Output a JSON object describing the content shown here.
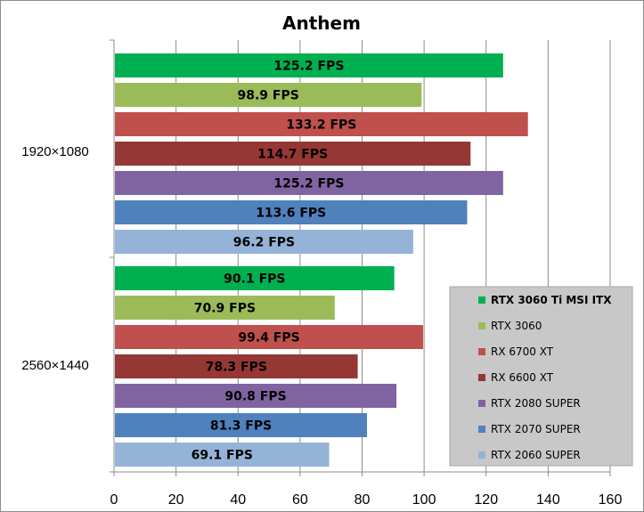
{
  "chart_data": {
    "type": "bar",
    "orientation": "horizontal",
    "title": "Anthem",
    "categories": [
      "1920×1080",
      "2560×1440"
    ],
    "series": [
      {
        "name": "RTX 3060 Ti MSI ITX",
        "color": "#00b050",
        "values": [
          125.2,
          90.1
        ],
        "labels": [
          "125.2 FPS",
          "90.1 FPS"
        ]
      },
      {
        "name": "RTX 3060",
        "color": "#9bbb59",
        "values": [
          98.9,
          70.9
        ],
        "labels": [
          "98.9 FPS",
          "70.9 FPS"
        ]
      },
      {
        "name": "RX 6700 XT",
        "color": "#c0504d",
        "values": [
          133.2,
          99.4
        ],
        "labels": [
          "133.2 FPS",
          "99.4 FPS"
        ]
      },
      {
        "name": "RX 6600 XT",
        "color": "#953735",
        "values": [
          114.7,
          78.3
        ],
        "labels": [
          "114.7 FPS",
          "78.3 FPS"
        ]
      },
      {
        "name": "RTX 2080 SUPER",
        "color": "#8064a2",
        "values": [
          125.2,
          90.8
        ],
        "labels": [
          "125.2 FPS",
          "90.8 FPS"
        ]
      },
      {
        "name": "RTX 2070 SUPER",
        "color": "#4f81bd",
        "values": [
          113.6,
          81.3
        ],
        "labels": [
          "113.6 FPS",
          "81.3 FPS"
        ]
      },
      {
        "name": "RTX 2060 SUPER",
        "color": "#95b3d7",
        "values": [
          96.2,
          69.1
        ],
        "labels": [
          "96.2 FPS",
          "69.1 FPS"
        ]
      }
    ],
    "xlim": [
      0,
      160
    ],
    "ticks": [
      "0",
      "20",
      "40",
      "60",
      "80",
      "100",
      "120",
      "140",
      "160"
    ],
    "grid": true,
    "legend": "bottom-right",
    "legend_bold_first": true
  }
}
